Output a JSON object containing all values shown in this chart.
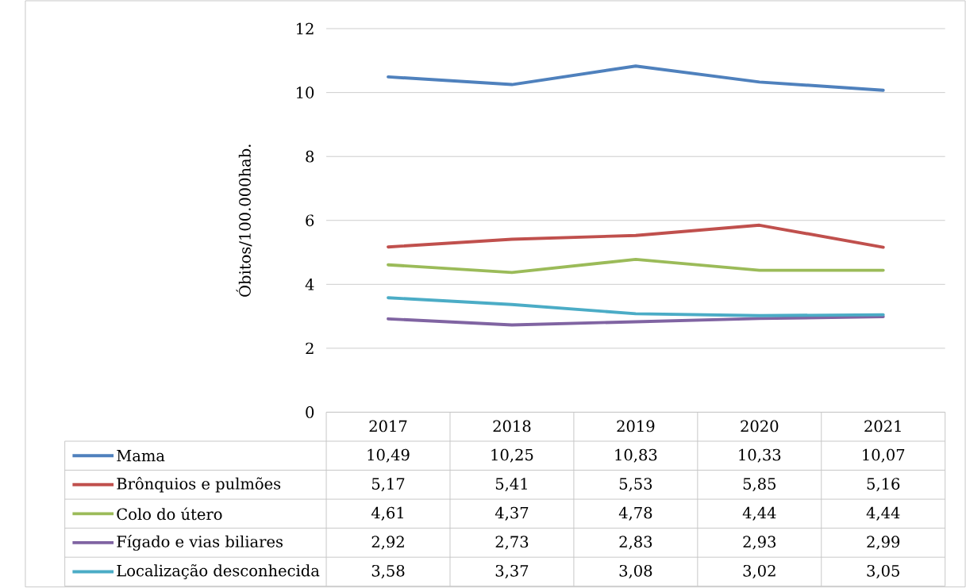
{
  "chart_data": {
    "type": "line",
    "ylabel": "Óbitos/100.000hab.",
    "categories": [
      "2017",
      "2018",
      "2019",
      "2020",
      "2021"
    ],
    "series": [
      {
        "name": "Mama",
        "color": "#4f81bd",
        "values": [
          10.49,
          10.25,
          10.83,
          10.33,
          10.07
        ],
        "value_labels": [
          "10,49",
          "10,25",
          "10,83",
          "10,33",
          "10,07"
        ]
      },
      {
        "name": "Brônquios e pulmões",
        "color": "#c0504d",
        "values": [
          5.17,
          5.41,
          5.53,
          5.85,
          5.16
        ],
        "value_labels": [
          "5,17",
          "5,41",
          "5,53",
          "5,85",
          "5,16"
        ]
      },
      {
        "name": "Colo do útero",
        "color": "#9bbb59",
        "values": [
          4.61,
          4.37,
          4.78,
          4.44,
          4.44
        ],
        "value_labels": [
          "4,61",
          "4,37",
          "4,78",
          "4,44",
          "4,44"
        ]
      },
      {
        "name": "Fígado e vias biliares",
        "color": "#8064a2",
        "values": [
          2.92,
          2.73,
          2.83,
          2.93,
          2.99
        ],
        "value_labels": [
          "2,92",
          "2,73",
          "2,83",
          "2,93",
          "2,99"
        ]
      },
      {
        "name": "Localização desconhecida",
        "color": "#4bacc6",
        "values": [
          3.58,
          3.37,
          3.08,
          3.02,
          3.05
        ],
        "value_labels": [
          "3,58",
          "3,37",
          "3,08",
          "3,02",
          "3,05"
        ]
      }
    ],
    "ylim": [
      0,
      12
    ],
    "yticks": [
      0,
      2,
      4,
      6,
      8,
      10,
      12
    ],
    "grid": "y",
    "legend": "bottom",
    "marker": "none",
    "line_style": "solid"
  }
}
